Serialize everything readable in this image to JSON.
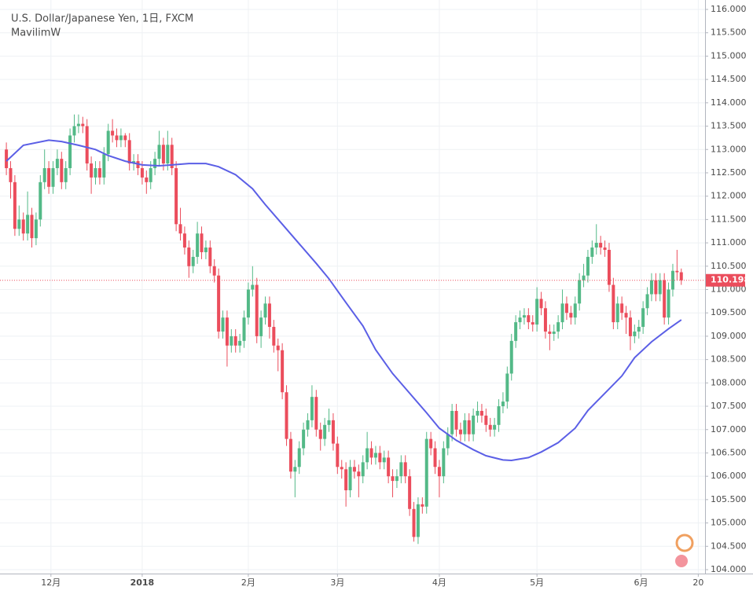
{
  "chart_data": {
    "type": "candlestick",
    "title": "U.S. Dollar/Japanese Yen, 1日, FXCM",
    "up_color": "#53b987",
    "down_color": "#eb4d5c",
    "open": [
      113.0,
      112.6,
      112.3,
      111.3,
      111.5,
      111.2,
      111.6,
      111.1,
      111.5,
      112.3,
      112.6,
      112.2,
      112.6,
      112.8,
      112.3,
      112.6,
      113.3,
      113.5,
      113.55,
      113.5,
      112.7,
      112.4,
      112.6,
      112.4,
      112.9,
      113.4,
      113.3,
      113.2,
      113.3,
      113.2,
      112.7,
      112.75,
      112.6,
      112.4,
      112.3,
      112.6,
      112.8,
      113.1,
      112.7,
      113.1,
      112.6,
      111.4,
      111.2,
      110.9,
      110.5,
      110.7,
      111.2,
      110.8,
      110.9,
      110.5,
      110.3,
      109.1,
      109.4,
      108.8,
      109.0,
      108.8,
      108.9,
      109.4,
      110.0,
      110.1,
      109.0,
      109.4,
      109.7,
      109.2,
      108.8,
      108.7,
      107.8,
      106.8,
      106.1,
      106.2,
      106.6,
      107.0,
      107.2,
      107.7,
      107.0,
      106.8,
      107.1,
      107.2,
      106.7,
      106.2,
      106.15,
      105.7,
      106.2,
      106.1,
      106.0,
      106.3,
      106.6,
      106.4,
      106.5,
      106.3,
      106.4,
      106.0,
      105.9,
      106.0,
      106.3,
      106.0,
      105.3,
      104.7,
      105.4,
      105.35,
      106.8,
      106.6,
      106.2,
      106.0,
      106.6,
      106.9,
      107.4,
      107.0,
      106.9,
      107.2,
      106.9,
      107.3,
      107.4,
      107.3,
      107.1,
      107.0,
      107.1,
      107.5,
      107.6,
      108.2,
      108.9,
      109.3,
      109.4,
      109.45,
      109.3,
      109.25,
      109.8,
      109.6,
      109.1,
      109.05,
      109.1,
      109.3,
      109.7,
      109.5,
      109.4,
      109.7,
      110.2,
      110.3,
      110.7,
      110.9,
      111.0,
      110.9,
      110.85,
      110.1,
      109.3,
      109.7,
      109.5,
      109.4,
      109.0,
      109.1,
      109.2,
      109.6,
      109.9,
      110.2,
      109.9,
      110.2,
      109.4,
      110.0,
      110.4,
      110.37
    ],
    "high": [
      113.15,
      112.75,
      112.45,
      111.8,
      111.65,
      112.1,
      111.75,
      111.65,
      112.45,
      113.0,
      112.75,
      112.75,
      113.0,
      112.95,
      112.75,
      113.45,
      113.75,
      113.75,
      113.7,
      113.65,
      112.85,
      112.75,
      112.75,
      113.05,
      113.55,
      113.65,
      113.45,
      113.45,
      113.35,
      113.35,
      112.9,
      112.9,
      112.75,
      112.55,
      112.75,
      112.95,
      113.4,
      113.25,
      113.4,
      113.25,
      112.75,
      111.75,
      111.35,
      111.05,
      110.85,
      111.45,
      111.35,
      111.05,
      111.05,
      110.65,
      110.45,
      109.55,
      109.55,
      109.15,
      109.15,
      109.05,
      109.55,
      110.15,
      110.5,
      110.25,
      109.55,
      109.85,
      109.85,
      109.35,
      108.95,
      108.85,
      107.95,
      106.95,
      106.35,
      106.75,
      107.15,
      107.35,
      107.95,
      107.85,
      107.15,
      107.25,
      107.45,
      107.35,
      106.85,
      106.35,
      106.3,
      106.35,
      106.35,
      106.25,
      106.45,
      106.95,
      106.75,
      106.65,
      106.65,
      106.55,
      106.55,
      106.15,
      106.15,
      106.45,
      106.45,
      106.15,
      105.45,
      105.55,
      105.55,
      106.95,
      106.95,
      106.75,
      106.35,
      106.75,
      107.05,
      107.55,
      107.55,
      107.15,
      107.35,
      107.35,
      107.45,
      107.6,
      107.55,
      107.45,
      107.25,
      107.25,
      107.65,
      107.8,
      108.35,
      109.05,
      109.45,
      109.55,
      109.6,
      109.6,
      109.45,
      110.05,
      109.95,
      109.75,
      109.25,
      109.25,
      109.45,
      110.0,
      109.85,
      109.65,
      109.85,
      110.35,
      110.55,
      110.85,
      111.05,
      111.4,
      111.15,
      111.05,
      111.0,
      110.25,
      109.85,
      109.85,
      109.65,
      109.55,
      109.25,
      109.35,
      109.75,
      110.05,
      110.35,
      110.35,
      110.35,
      110.35,
      110.15,
      110.55,
      110.85,
      110.45
    ],
    "low": [
      112.45,
      111.95,
      111.15,
      111.15,
      111.05,
      111.05,
      110.9,
      110.95,
      111.35,
      112.15,
      112.05,
      112.05,
      112.45,
      112.15,
      112.15,
      112.45,
      113.15,
      113.35,
      113.35,
      112.55,
      112.05,
      112.25,
      112.25,
      112.25,
      112.75,
      113.15,
      113.05,
      113.05,
      113.05,
      112.55,
      112.55,
      112.45,
      112.25,
      112.05,
      112.15,
      112.45,
      112.65,
      112.55,
      112.55,
      112.45,
      111.25,
      111.05,
      110.75,
      110.25,
      110.35,
      110.55,
      110.65,
      110.65,
      110.35,
      110.15,
      108.95,
      108.95,
      108.35,
      108.65,
      108.65,
      108.65,
      108.75,
      109.25,
      109.85,
      108.85,
      108.75,
      109.25,
      108.95,
      108.65,
      108.25,
      107.65,
      106.65,
      105.95,
      105.55,
      106.05,
      106.45,
      106.85,
      107.05,
      106.85,
      106.55,
      106.65,
      106.95,
      106.55,
      106.05,
      105.95,
      105.35,
      105.55,
      105.95,
      105.55,
      105.85,
      106.15,
      106.25,
      106.25,
      106.15,
      106.15,
      105.85,
      105.55,
      105.75,
      105.85,
      105.85,
      105.15,
      104.6,
      104.55,
      105.2,
      105.2,
      106.45,
      106.05,
      105.55,
      105.85,
      106.45,
      106.75,
      106.85,
      106.75,
      106.75,
      106.75,
      106.75,
      107.15,
      107.15,
      106.95,
      106.85,
      106.85,
      106.95,
      107.35,
      107.45,
      108.05,
      108.75,
      109.15,
      109.25,
      109.15,
      109.1,
      109.1,
      109.45,
      108.95,
      108.7,
      108.9,
      108.95,
      109.15,
      109.35,
      109.25,
      109.25,
      109.55,
      110.05,
      110.15,
      110.55,
      110.75,
      110.75,
      110.7,
      109.95,
      109.15,
      109.15,
      109.35,
      109.05,
      108.7,
      108.85,
      108.95,
      109.05,
      109.45,
      109.75,
      109.75,
      109.75,
      109.25,
      109.25,
      109.85,
      110.2,
      110.1
    ],
    "close": [
      112.6,
      112.3,
      111.3,
      111.5,
      111.2,
      111.6,
      111.1,
      111.5,
      112.3,
      112.6,
      112.2,
      112.6,
      112.8,
      112.3,
      112.6,
      113.3,
      113.5,
      113.55,
      113.5,
      112.7,
      112.4,
      112.6,
      112.4,
      112.9,
      113.4,
      113.3,
      113.2,
      113.3,
      113.2,
      112.7,
      112.75,
      112.6,
      112.4,
      112.3,
      112.6,
      112.8,
      113.1,
      112.7,
      113.1,
      112.6,
      111.4,
      111.2,
      110.9,
      110.5,
      110.7,
      111.2,
      110.8,
      110.9,
      110.5,
      110.3,
      109.1,
      109.4,
      108.8,
      109.0,
      108.8,
      108.9,
      109.4,
      110.0,
      110.1,
      109.0,
      109.4,
      109.7,
      109.2,
      108.8,
      108.7,
      107.8,
      106.8,
      106.1,
      106.2,
      106.6,
      107.0,
      107.2,
      107.7,
      107.0,
      106.8,
      107.1,
      107.2,
      106.7,
      106.2,
      106.15,
      105.7,
      106.2,
      106.1,
      106.0,
      106.3,
      106.6,
      106.4,
      106.5,
      106.3,
      106.4,
      106.0,
      105.9,
      106.0,
      106.3,
      106.0,
      105.3,
      104.7,
      105.4,
      105.35,
      106.8,
      106.6,
      106.2,
      106.0,
      106.6,
      106.9,
      107.4,
      107.0,
      106.9,
      107.2,
      106.9,
      107.3,
      107.4,
      107.3,
      107.1,
      107.0,
      107.1,
      107.5,
      107.6,
      108.2,
      108.9,
      109.3,
      109.4,
      109.45,
      109.3,
      109.25,
      109.8,
      109.6,
      109.1,
      109.05,
      109.1,
      109.3,
      109.7,
      109.5,
      109.4,
      109.7,
      110.2,
      110.3,
      110.7,
      110.9,
      111.0,
      110.9,
      110.85,
      110.1,
      109.3,
      109.7,
      109.5,
      109.4,
      109.0,
      109.1,
      109.2,
      109.6,
      109.9,
      110.2,
      109.9,
      110.2,
      109.4,
      110.0,
      110.4,
      110.37,
      110.198
    ],
    "series": [
      {
        "name": "MavilimW",
        "color": "#5b5fe6",
        "x": [
          0,
          4,
          10,
          13,
          17,
          21,
          24,
          28,
          32,
          36,
          39,
          43,
          47,
          50,
          54,
          58,
          61,
          65,
          69,
          73,
          76,
          80,
          84,
          87,
          91,
          95,
          99,
          102,
          106,
          110,
          113,
          117,
          119,
          123,
          126,
          130,
          134,
          137,
          141,
          145,
          148,
          152,
          156,
          159
        ],
        "values": [
          112.75,
          113.09,
          113.2,
          113.17,
          113.09,
          113.0,
          112.87,
          112.75,
          112.67,
          112.65,
          112.67,
          112.7,
          112.7,
          112.63,
          112.46,
          112.16,
          111.82,
          111.4,
          110.98,
          110.56,
          110.23,
          109.72,
          109.22,
          108.71,
          108.2,
          107.78,
          107.36,
          107.03,
          106.77,
          106.57,
          106.44,
          106.35,
          106.34,
          106.4,
          106.52,
          106.72,
          107.03,
          107.41,
          107.78,
          108.15,
          108.54,
          108.88,
          109.16,
          109.35
        ]
      }
    ],
    "xlim": [
      -1.5,
      164.6
    ],
    "xticks": [
      {
        "value": 10.5,
        "label": "12月"
      },
      {
        "value": 32,
        "label": "2018"
      },
      {
        "value": 57,
        "label": "2月"
      },
      {
        "value": 78,
        "label": "3月"
      },
      {
        "value": 102,
        "label": "4月"
      },
      {
        "value": 125,
        "label": "5月"
      },
      {
        "value": 149.5,
        "label": "6月"
      },
      {
        "value": 163,
        "label": "20"
      }
    ],
    "ylim": [
      104,
      116
    ],
    "yticks": [
      {
        "value": 104,
        "label": "104.000"
      },
      {
        "value": 104.5,
        "label": "104.500"
      },
      {
        "value": 105,
        "label": "105.000"
      },
      {
        "value": 105.5,
        "label": "105.500"
      },
      {
        "value": 106,
        "label": "106.000"
      },
      {
        "value": 106.5,
        "label": "106.500"
      },
      {
        "value": 107,
        "label": "107.000"
      },
      {
        "value": 107.5,
        "label": "107.500"
      },
      {
        "value": 108,
        "label": "108.000"
      },
      {
        "value": 108.5,
        "label": "108.500"
      },
      {
        "value": 109,
        "label": "109.000"
      },
      {
        "value": 109.5,
        "label": "109.500"
      },
      {
        "value": 110,
        "label": "110.000"
      },
      {
        "value": 110.5,
        "label": "110.500"
      },
      {
        "value": 111,
        "label": "111.000"
      },
      {
        "value": 111.5,
        "label": "111.500"
      },
      {
        "value": 112,
        "label": "112.000"
      },
      {
        "value": 112.5,
        "label": "112.500"
      },
      {
        "value": 113,
        "label": "113.000"
      },
      {
        "value": 113.5,
        "label": "113.500"
      },
      {
        "value": 114,
        "label": "114.000"
      },
      {
        "value": 114.5,
        "label": "114.500"
      },
      {
        "value": 115,
        "label": "115.000"
      },
      {
        "value": 115.5,
        "label": "115.500"
      },
      {
        "value": 116,
        "label": "116.000"
      }
    ],
    "grid": true
  }
}
